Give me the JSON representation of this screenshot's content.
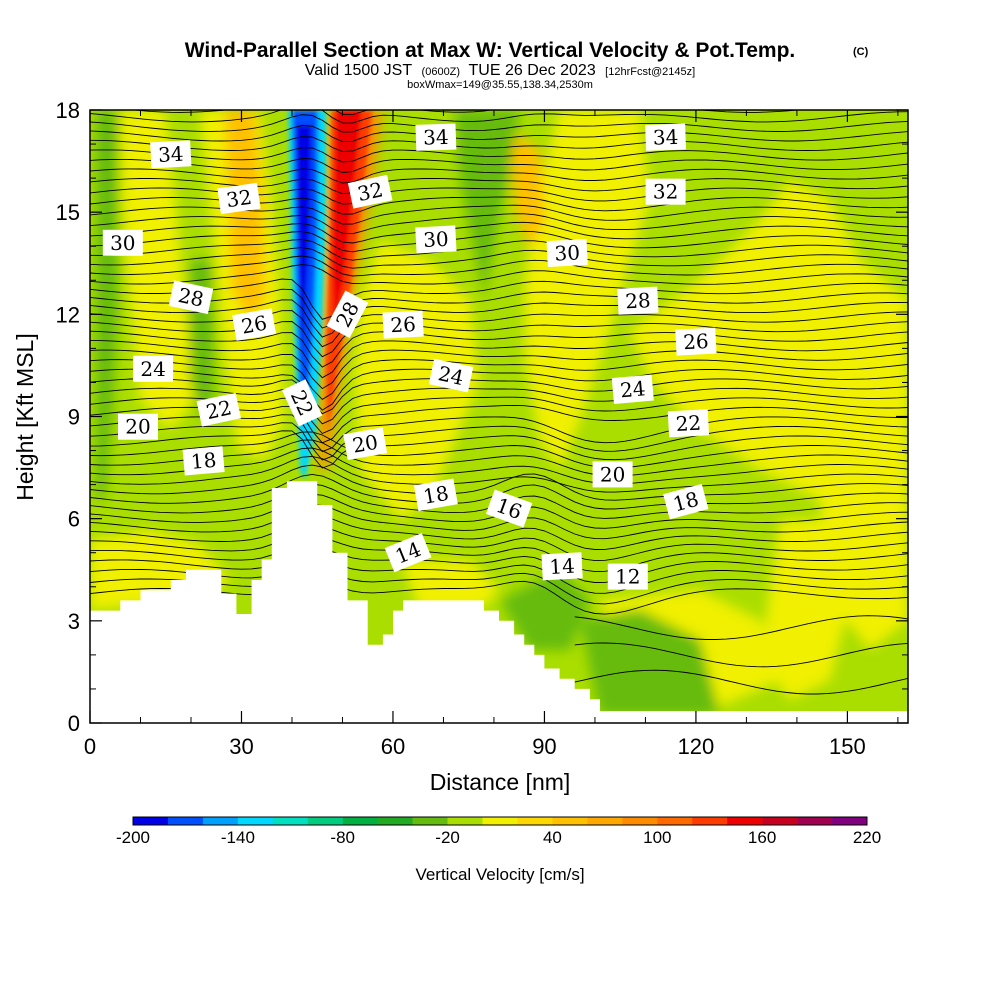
{
  "chart_data": {
    "type": "heatmap",
    "title": "Wind-Parallel Section at Max W: Vertical Velocity & Pot.Temp.",
    "title_suffix": "(C)",
    "subtitle_pre": "Valid 1500 JST",
    "subtitle_mid": "(0600Z)",
    "subtitle_post": "TUE 26 Dec 2023",
    "subtitle_tail": "[12hrFcst@2145z]",
    "subtitle2": "boxWmax=149@35.55,138.34,2530m",
    "xlabel": "Distance [nm]",
    "ylabel": "Height [Kft MSL]",
    "xlim": [
      0,
      162
    ],
    "ylim": [
      0,
      18
    ],
    "x_ticks": [
      "0",
      "30",
      "60",
      "90",
      "120",
      "150"
    ],
    "y_ticks": [
      "0",
      "3",
      "6",
      "9",
      "12",
      "15",
      "18"
    ],
    "colorbar": {
      "title": "Vertical Velocity [cm/s]",
      "labels": [
        "-200",
        "-140",
        "-80",
        "-20",
        "40",
        "100",
        "160",
        "220"
      ],
      "bounds": [
        -200,
        -180,
        -160,
        -140,
        -120,
        -100,
        -80,
        -60,
        -40,
        -20,
        0,
        20,
        40,
        60,
        80,
        100,
        120,
        140,
        160,
        180,
        200,
        220
      ],
      "colors": [
        "#0000e6",
        "#0050ff",
        "#00a0ff",
        "#00d8ff",
        "#00e0c0",
        "#00cc80",
        "#00b040",
        "#22aa22",
        "#66bb11",
        "#aade00",
        "#f0f000",
        "#ffd700",
        "#ffc000",
        "#ffa800",
        "#ff8c00",
        "#ff6a00",
        "#ff3c00",
        "#ee0000",
        "#c80020",
        "#a00050",
        "#800080"
      ]
    },
    "terrain_kft": [
      [
        0,
        3.3
      ],
      [
        6,
        3.3
      ],
      [
        6,
        3.6
      ],
      [
        10,
        3.6
      ],
      [
        10,
        3.9
      ],
      [
        16,
        3.9
      ],
      [
        16,
        4.2
      ],
      [
        19,
        4.2
      ],
      [
        19,
        4.5
      ],
      [
        26,
        4.5
      ],
      [
        26,
        3.8
      ],
      [
        29,
        3.8
      ],
      [
        29,
        3.2
      ],
      [
        32,
        3.2
      ],
      [
        32,
        4.2
      ],
      [
        34,
        4.2
      ],
      [
        34,
        4.8
      ],
      [
        36,
        4.8
      ],
      [
        36,
        6.9
      ],
      [
        39,
        6.9
      ],
      [
        39,
        7.1
      ],
      [
        45,
        7.1
      ],
      [
        45,
        6.4
      ],
      [
        48,
        6.4
      ],
      [
        48,
        5.0
      ],
      [
        51,
        5.0
      ],
      [
        51,
        3.6
      ],
      [
        55,
        3.6
      ],
      [
        55,
        2.3
      ],
      [
        58,
        2.3
      ],
      [
        58,
        2.6
      ],
      [
        60,
        2.6
      ],
      [
        60,
        3.3
      ],
      [
        62,
        3.3
      ],
      [
        62,
        3.6
      ],
      [
        78,
        3.6
      ],
      [
        78,
        3.3
      ],
      [
        81,
        3.3
      ],
      [
        81,
        3.0
      ],
      [
        84,
        3.0
      ],
      [
        84,
        2.6
      ],
      [
        86,
        2.6
      ],
      [
        86,
        2.3
      ],
      [
        88,
        2.3
      ],
      [
        88,
        2.0
      ],
      [
        90,
        2.0
      ],
      [
        90,
        1.6
      ],
      [
        93,
        1.6
      ],
      [
        93,
        1.3
      ],
      [
        96,
        1.3
      ],
      [
        96,
        1.0
      ],
      [
        99,
        1.0
      ],
      [
        99,
        0.7
      ],
      [
        101,
        0.7
      ],
      [
        101,
        0.35
      ],
      [
        162,
        0.35
      ]
    ],
    "isentrope_labels": [
      {
        "text": "34",
        "x": 16.0,
        "y": 16.7,
        "rot": -3
      },
      {
        "text": "34",
        "x": 68.5,
        "y": 17.2,
        "rot": -2
      },
      {
        "text": "34",
        "x": 114.0,
        "y": 17.2,
        "rot": -2
      },
      {
        "text": "32",
        "x": 29.5,
        "y": 15.4,
        "rot": -8
      },
      {
        "text": "32",
        "x": 55.5,
        "y": 15.6,
        "rot": -12
      },
      {
        "text": "32",
        "x": 114.0,
        "y": 15.6,
        "rot": 0
      },
      {
        "text": "30",
        "x": 6.5,
        "y": 14.1,
        "rot": 0
      },
      {
        "text": "30",
        "x": 68.5,
        "y": 14.2,
        "rot": -3
      },
      {
        "text": "30",
        "x": 94.5,
        "y": 13.8,
        "rot": -3
      },
      {
        "text": "28",
        "x": 20.0,
        "y": 12.5,
        "rot": 12
      },
      {
        "text": "28",
        "x": 51.0,
        "y": 12.0,
        "rot": -62
      },
      {
        "text": "28",
        "x": 108.5,
        "y": 12.4,
        "rot": -3
      },
      {
        "text": "26",
        "x": 32.5,
        "y": 11.7,
        "rot": -10
      },
      {
        "text": "26",
        "x": 62.0,
        "y": 11.7,
        "rot": -3
      },
      {
        "text": "26",
        "x": 120.0,
        "y": 11.2,
        "rot": -3
      },
      {
        "text": "24",
        "x": 12.5,
        "y": 10.4,
        "rot": 0
      },
      {
        "text": "24",
        "x": 71.5,
        "y": 10.2,
        "rot": 12
      },
      {
        "text": "24",
        "x": 107.5,
        "y": 9.8,
        "rot": -5
      },
      {
        "text": "22",
        "x": 25.5,
        "y": 9.2,
        "rot": -12
      },
      {
        "text": "22",
        "x": 42.0,
        "y": 9.4,
        "rot": 65
      },
      {
        "text": "22",
        "x": 118.5,
        "y": 8.8,
        "rot": -3
      },
      {
        "text": "20",
        "x": 9.5,
        "y": 8.7,
        "rot": 0
      },
      {
        "text": "20",
        "x": 54.5,
        "y": 8.2,
        "rot": -10
      },
      {
        "text": "20",
        "x": 103.5,
        "y": 7.3,
        "rot": 0
      },
      {
        "text": "18",
        "x": 22.5,
        "y": 7.7,
        "rot": -5
      },
      {
        "text": "18",
        "x": 68.5,
        "y": 6.7,
        "rot": -10
      },
      {
        "text": "18",
        "x": 118.0,
        "y": 6.5,
        "rot": -15
      },
      {
        "text": "16",
        "x": 83.0,
        "y": 6.3,
        "rot": 20
      },
      {
        "text": "14",
        "x": 63.0,
        "y": 5.0,
        "rot": -22
      },
      {
        "text": "14",
        "x": 93.5,
        "y": 4.6,
        "rot": -3
      },
      {
        "text": "12",
        "x": 106.5,
        "y": 4.3,
        "rot": 0
      }
    ]
  }
}
